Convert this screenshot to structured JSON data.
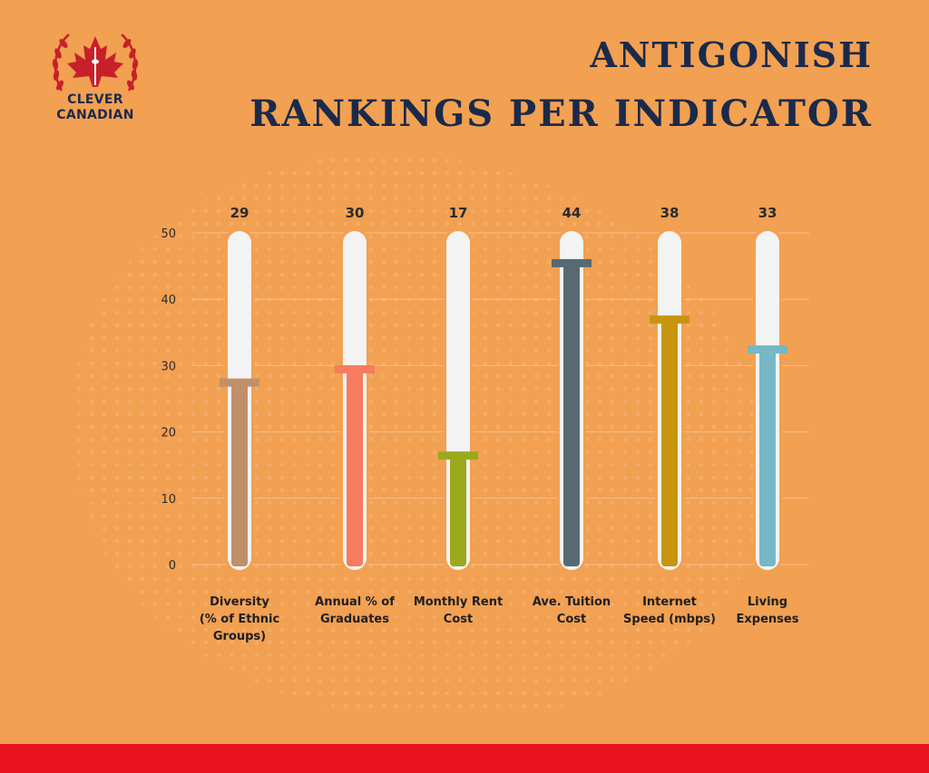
{
  "brand": {
    "line1": "CLEVER",
    "line2": "CANADIAN"
  },
  "title": {
    "line1": "ANTIGONISH",
    "line2": "RANKINGS PER INDICATOR"
  },
  "colors": {
    "background": "#F2A052",
    "title": "#1B2A4A",
    "track": "#F3F3F3",
    "bottom_bar": "#E8131F",
    "logo_red": "#C8202A"
  },
  "chart_data": {
    "type": "bar",
    "categories": [
      "Diversity (% of Ethnic Groups)",
      "Annual % of Graduates",
      "Monthly Rent Cost",
      "Ave. Tuition Cost",
      "Internet Speed (mbps)",
      "Living Expenses"
    ],
    "category_lines": [
      [
        "Diversity",
        "(% of Ethnic",
        "Groups)"
      ],
      [
        "Annual % of",
        "Graduates"
      ],
      [
        "Monthly Rent",
        "Cost"
      ],
      [
        "Ave. Tuition",
        "Cost"
      ],
      [
        "Internet",
        "Speed (mbps)"
      ],
      [
        "Living",
        "Expenses"
      ]
    ],
    "values": [
      29,
      30,
      17,
      44,
      38,
      33
    ],
    "fill_levels": [
      27.5,
      29.5,
      16.5,
      45.5,
      37,
      32.5
    ],
    "value_labels": [
      "29",
      "30",
      "17",
      "44",
      "38",
      "33"
    ],
    "bar_colors": [
      "#C0906A",
      "#F77B5E",
      "#9AAA1C",
      "#576A72",
      "#C7950F",
      "#77B7C6"
    ],
    "cap_colors": [
      "#C0906A",
      "#F77B5E",
      "#9AAA1C",
      "#576A72",
      "#C7950F",
      "#77B7C6"
    ],
    "yticks": [
      0,
      10,
      20,
      30,
      40,
      50
    ],
    "ylim": [
      0,
      50
    ],
    "grid": true,
    "xlabel": "",
    "ylabel": ""
  }
}
